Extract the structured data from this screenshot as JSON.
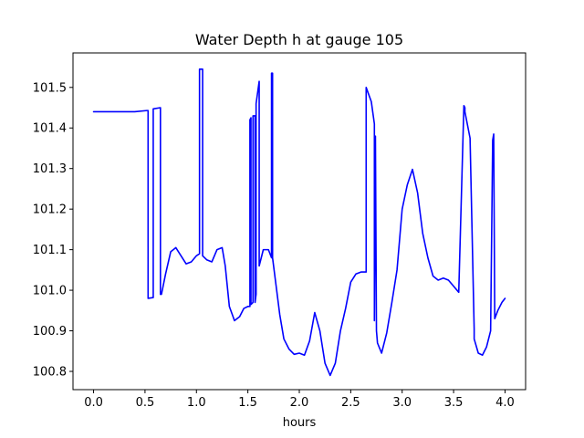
{
  "chart_data": {
    "type": "line",
    "title": "Water Depth h at gauge 105",
    "xlabel": "hours",
    "ylabel": "",
    "xlim": [
      -0.2,
      4.2
    ],
    "ylim": [
      100.755,
      101.585
    ],
    "grid": false,
    "legend": "none",
    "x_ticks": [
      0.0,
      0.5,
      1.0,
      1.5,
      2.0,
      2.5,
      3.0,
      3.5,
      4.0
    ],
    "x_tick_labels": [
      "0.0",
      "0.5",
      "1.0",
      "1.5",
      "2.0",
      "2.5",
      "3.0",
      "3.5",
      "4.0"
    ],
    "y_ticks": [
      100.8,
      100.9,
      101.0,
      101.1,
      101.2,
      101.3,
      101.4,
      101.5
    ],
    "y_tick_labels": [
      "100.8",
      "100.9",
      "101.0",
      "101.1",
      "101.2",
      "101.3",
      "101.4",
      "101.5"
    ],
    "series": [
      {
        "color": "#0000ff",
        "x": [
          0.0,
          0.2,
          0.4,
          0.52,
          0.53,
          0.53,
          0.58,
          0.58,
          0.65,
          0.65,
          0.66,
          0.7,
          0.75,
          0.8,
          0.85,
          0.9,
          0.95,
          1.0,
          1.03,
          1.03,
          1.06,
          1.06,
          1.1,
          1.15,
          1.2,
          1.25,
          1.28,
          1.32,
          1.37,
          1.42,
          1.46,
          1.5,
          1.52,
          1.52,
          1.53,
          1.53,
          1.55,
          1.55,
          1.57,
          1.57,
          1.58,
          1.58,
          1.61,
          1.61,
          1.65,
          1.7,
          1.73,
          1.73,
          1.74,
          1.74,
          1.77,
          1.81,
          1.85,
          1.9,
          1.95,
          2.0,
          2.05,
          2.1,
          2.15,
          2.2,
          2.25,
          2.3,
          2.35,
          2.4,
          2.45,
          2.5,
          2.55,
          2.6,
          2.63,
          2.65,
          2.65,
          2.7,
          2.73,
          2.73,
          2.74,
          2.74,
          2.75,
          2.75,
          2.76,
          2.8,
          2.85,
          2.9,
          2.95,
          3.0,
          3.05,
          3.1,
          3.15,
          3.2,
          3.25,
          3.3,
          3.35,
          3.4,
          3.45,
          3.5,
          3.55,
          3.6,
          3.61,
          3.61,
          3.66,
          3.7,
          3.7,
          3.74,
          3.78,
          3.82,
          3.86,
          3.88,
          3.88,
          3.89,
          3.89,
          3.9,
          3.93,
          3.97,
          4.0
        ],
        "y": [
          101.44,
          101.44,
          101.44,
          101.443,
          101.443,
          100.98,
          100.982,
          101.447,
          101.45,
          100.99,
          100.99,
          101.04,
          101.095,
          101.105,
          101.085,
          101.065,
          101.07,
          101.085,
          101.09,
          101.545,
          101.545,
          101.085,
          101.075,
          101.07,
          101.1,
          101.105,
          101.06,
          100.96,
          100.925,
          100.935,
          100.955,
          100.96,
          100.96,
          101.42,
          101.425,
          100.965,
          100.97,
          101.43,
          101.43,
          100.97,
          100.99,
          101.46,
          101.515,
          101.06,
          101.1,
          101.1,
          101.08,
          101.535,
          101.535,
          101.08,
          101.02,
          100.94,
          100.88,
          100.855,
          100.842,
          100.845,
          100.84,
          100.875,
          100.945,
          100.9,
          100.82,
          100.79,
          100.82,
          100.9,
          100.955,
          101.02,
          101.04,
          101.045,
          101.045,
          101.045,
          101.5,
          101.465,
          101.41,
          100.925,
          101.38,
          101.38,
          100.9,
          100.9,
          100.87,
          100.845,
          100.895,
          100.97,
          101.05,
          101.2,
          101.26,
          101.298,
          101.24,
          101.14,
          101.08,
          101.035,
          101.025,
          101.03,
          101.025,
          101.01,
          100.995,
          101.455,
          101.45,
          101.44,
          101.375,
          100.905,
          100.88,
          100.845,
          100.84,
          100.86,
          100.9,
          101.37,
          101.37,
          101.385,
          101.385,
          100.93,
          100.95,
          100.97,
          100.98
        ]
      }
    ]
  }
}
